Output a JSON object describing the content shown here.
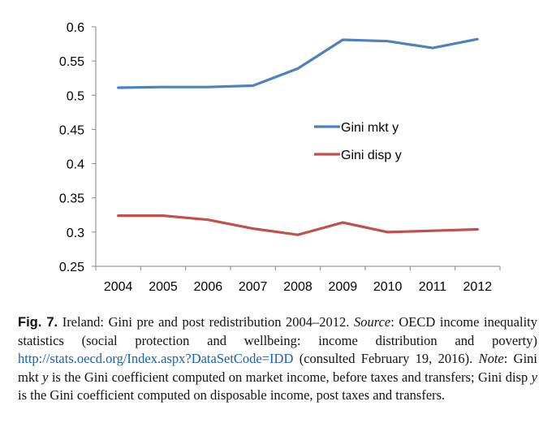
{
  "chart_data": {
    "type": "line",
    "categories": [
      "2004",
      "2005",
      "2006",
      "2007",
      "2008",
      "2009",
      "2010",
      "2011",
      "2012"
    ],
    "series": [
      {
        "name": "Gini mkt y",
        "color": "#4f81bd",
        "values": [
          0.511,
          0.512,
          0.512,
          0.514,
          0.539,
          0.581,
          0.579,
          0.569,
          0.582
        ]
      },
      {
        "name": "Gini disp y",
        "color": "#c0504d",
        "values": [
          0.324,
          0.324,
          0.318,
          0.305,
          0.296,
          0.314,
          0.3,
          0.302,
          0.304
        ]
      }
    ],
    "ylim": [
      0.25,
      0.6
    ],
    "yticks": [
      "0.25",
      "0.3",
      "0.35",
      "0.4",
      "0.45",
      "0.5",
      "0.55",
      "0.6"
    ],
    "ytick_values": [
      0.25,
      0.3,
      0.35,
      0.4,
      0.45,
      0.5,
      0.55,
      0.6
    ],
    "grid": false,
    "legend_position": "inside-center"
  },
  "caption": {
    "fig_label": "Fig. 7.",
    "text1": " Ireland: Gini pre and post redistribution 2004–2012. ",
    "source_label": "Source",
    "text2": ": OECD income inequality statistics (social protection and wellbeing: income distribution and poverty) ",
    "link": "http://stats.oecd.org/Index.aspx?DataSetCode=IDD",
    "text3": " (consulted February 19, 2016). ",
    "note_label": "Note",
    "text4": ": Gini mkt ",
    "var1": "y",
    "text5": " is the Gini coefficient computed on market income, before taxes and transfers; Gini disp ",
    "var2": "y",
    "text6": " is the Gini coefficient computed on disposable income, post taxes and transfers."
  }
}
